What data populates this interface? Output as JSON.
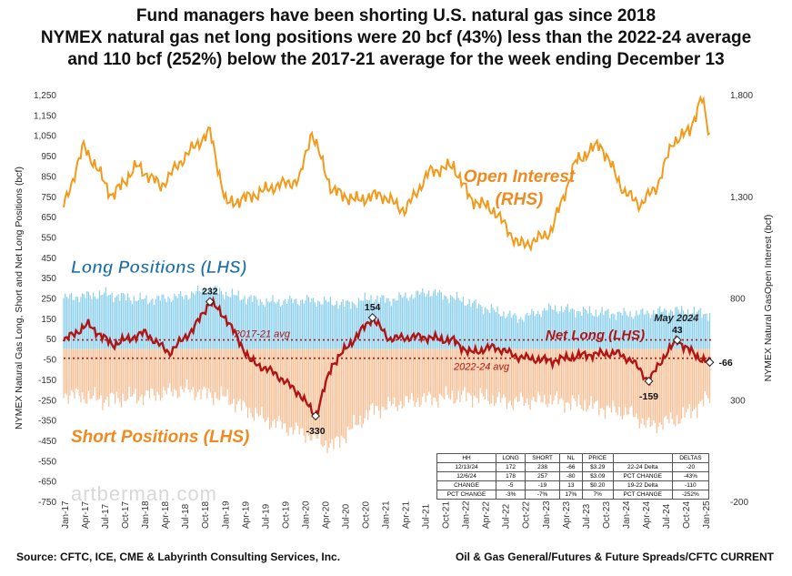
{
  "title_lines": [
    "Fund managers have been shorting U.S. natural gas since 2018",
    "NYMEX natural gas net long positions were 20 bcf (43%) less than the 2022-24 average",
    "and 110 bcf (252%) below the 2017-21 average for the week ending December 13"
  ],
  "watermark": "artberman.com",
  "source": "Source: CFTC, ICE, CME & Labyrinth Consulting Services, Inc.",
  "source_right": "Oil & Gas General/Futures & Future Spreads/CFTC CURRENT",
  "colors": {
    "long": "#29a8e0",
    "short": "#f08a3c",
    "net": "#b01515",
    "open_interest": "#f29a1a",
    "label_long": "#1d6fa5",
    "label_orange": "#ee8a1f",
    "net_label": "#b01515"
  },
  "table": {
    "rows": [
      [
        "HH",
        "LONG",
        "SHORT",
        "NL",
        "PRICE",
        "",
        "DELTAS"
      ],
      [
        "12/13/24",
        "172",
        "238",
        "-66",
        "$3.29",
        "22-24 Delta",
        "-20"
      ],
      [
        "12/6/24",
        "178",
        "257",
        "-80",
        "$3.09",
        "PCT CHANGE",
        "-43%"
      ],
      [
        "CHANGE",
        "-5",
        "-19",
        "13",
        "$0.20",
        "19-22 Delta",
        "-110"
      ],
      [
        "PCT CHANGE",
        "-3%",
        "-7%",
        "17%",
        "7%",
        "PCT CHANGE",
        "-252%"
      ]
    ]
  },
  "chart_data": {
    "type": "line",
    "title": "",
    "ylabel": "NYMEX Natural Gas Long, Short and Net Long Positions (bcf)",
    "y2label": "NYMEX Natural GasOpen Interest (bcf)",
    "ylim": [
      -750,
      1250
    ],
    "y2lim": [
      -200,
      1800
    ],
    "y_ticks": [
      "1,250",
      "1,150",
      "1,050",
      "950",
      "850",
      "750",
      "650",
      "550",
      "450",
      "350",
      "250",
      "150",
      "50",
      "-50",
      "-150",
      "-250",
      "-350",
      "-450",
      "-550",
      "-650",
      "-750"
    ],
    "y2_ticks": [
      "1,800",
      "1,300",
      "800",
      "300",
      "-200"
    ],
    "x_ticks": [
      "Jan-17",
      "Apr-17",
      "Jul-17",
      "Oct-17",
      "Jan-18",
      "Apr-18",
      "Jul-18",
      "Oct-18",
      "Jan-19",
      "Apr-19",
      "Jul-19",
      "Oct-19",
      "Jan-20",
      "Apr-20",
      "Jul-20",
      "Oct-20",
      "Jan-21",
      "Apr-21",
      "Jul-21",
      "Oct-21",
      "Jan-22",
      "Apr-22",
      "Jul-22",
      "Oct-22",
      "Jan-23",
      "Apr-23",
      "Jul-23",
      "Oct-23",
      "Jan-24",
      "Apr-24",
      "Jul-24",
      "Oct-24",
      "Jan-25"
    ],
    "grid": false,
    "series": [
      {
        "name": "Open Interest (RHS)",
        "axis": "right",
        "x": [
          2017.0,
          2017.25,
          2017.6,
          2017.9,
          2018.2,
          2018.5,
          2018.8,
          2019.0,
          2019.3,
          2019.6,
          2019.9,
          2020.05,
          2020.3,
          2020.6,
          2020.9,
          2021.2,
          2021.5,
          2021.8,
          2022.0,
          2022.3,
          2022.6,
          2022.8,
          2023.0,
          2023.3,
          2023.6,
          2023.9,
          2024.1,
          2024.3,
          2024.5,
          2024.7,
          2024.85,
          2024.95
        ],
        "values": [
          1250,
          1550,
          1300,
          1450,
          1350,
          1500,
          1620,
          1260,
          1300,
          1350,
          1380,
          1620,
          1330,
          1280,
          1310,
          1230,
          1420,
          1450,
          1290,
          1230,
          1060,
          1080,
          1130,
          1470,
          1560,
          1320,
          1260,
          1350,
          1570,
          1620,
          1790,
          1590
        ]
      },
      {
        "name": "Long Positions (LHS)",
        "axis": "left",
        "x": [
          2017.0,
          2017.5,
          2018.0,
          2018.5,
          2018.8,
          2019.0,
          2019.5,
          2020.0,
          2020.5,
          2020.8,
          2021.0,
          2021.5,
          2021.9,
          2022.2,
          2022.6,
          2023.0,
          2023.5,
          2024.0,
          2024.5,
          2024.95
        ],
        "values": [
          250,
          270,
          240,
          260,
          300,
          270,
          230,
          240,
          220,
          250,
          240,
          280,
          240,
          200,
          150,
          200,
          180,
          170,
          190,
          172
        ]
      },
      {
        "name": "Short Positions (LHS)",
        "axis": "left",
        "x": [
          2017.0,
          2017.5,
          2018.0,
          2018.5,
          2019.0,
          2019.5,
          2020.0,
          2020.3,
          2020.8,
          2021.2,
          2021.6,
          2022.0,
          2022.5,
          2023.0,
          2023.5,
          2024.0,
          2024.2,
          2024.6,
          2024.95
        ],
        "values": [
          -220,
          -250,
          -230,
          -200,
          -240,
          -350,
          -420,
          -480,
          -300,
          -260,
          -240,
          -230,
          -260,
          -250,
          -280,
          -320,
          -380,
          -340,
          -238
        ]
      },
      {
        "name": "Net Long (LHS)",
        "axis": "left",
        "x": [
          2017.0,
          2017.3,
          2017.6,
          2018.0,
          2018.3,
          2018.6,
          2018.8,
          2019.0,
          2019.3,
          2019.6,
          2019.9,
          2020.1,
          2020.3,
          2020.6,
          2020.8,
          2021.0,
          2021.4,
          2021.8,
          2022.0,
          2022.3,
          2022.6,
          2023.0,
          2023.4,
          2023.8,
          2024.0,
          2024.2,
          2024.4,
          2024.55,
          2024.8,
          2024.95
        ],
        "values": [
          40,
          120,
          20,
          80,
          -20,
          100,
          232,
          150,
          -60,
          -120,
          -220,
          -330,
          -80,
          60,
          154,
          50,
          60,
          40,
          -20,
          10,
          -40,
          -60,
          -30,
          -20,
          -60,
          -159,
          -30,
          43,
          -40,
          -66
        ]
      }
    ],
    "reference_lines": [
      {
        "name": "2017-21 avg",
        "value": 44
      },
      {
        "name": "2022-24 avg",
        "value": -46
      }
    ],
    "annotations": [
      {
        "text": "232",
        "x": 2018.8,
        "y": 232
      },
      {
        "text": "154",
        "x": 2020.8,
        "y": 154
      },
      {
        "text": "-330",
        "x": 2020.1,
        "y": -330
      },
      {
        "text": "May 2024",
        "x": 2024.4,
        "y": 135
      },
      {
        "text": "43",
        "x": 2024.55,
        "y": 43
      },
      {
        "text": "-159",
        "x": 2024.2,
        "y": -159
      },
      {
        "text": "-66",
        "x": 2024.95,
        "y": -66
      }
    ],
    "series_labels": {
      "open_interest": "Open Interest",
      "rhs": "(RHS)",
      "long": "Long Positions (LHS)",
      "short": "Short Positions (LHS)",
      "net": "Net Long (LHS)"
    }
  }
}
